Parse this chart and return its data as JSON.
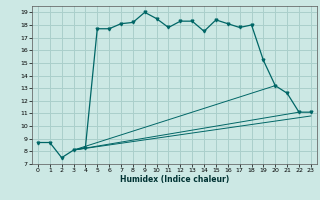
{
  "xlabel": "Humidex (Indice chaleur)",
  "ylabel": "",
  "bg_color": "#cce8e4",
  "grid_color": "#aacfcb",
  "line_color": "#006666",
  "xlim": [
    -0.5,
    23.5
  ],
  "ylim": [
    7,
    19.5
  ],
  "xticks": [
    0,
    1,
    2,
    3,
    4,
    5,
    6,
    7,
    8,
    9,
    10,
    11,
    12,
    13,
    14,
    15,
    16,
    17,
    18,
    19,
    20,
    21,
    22,
    23
  ],
  "yticks": [
    7,
    8,
    9,
    10,
    11,
    12,
    13,
    14,
    15,
    16,
    17,
    18,
    19
  ],
  "main_x": [
    0,
    1,
    2,
    3,
    4,
    5,
    6,
    7,
    8,
    9,
    10,
    11,
    12,
    13,
    14,
    15,
    16,
    17,
    18,
    19,
    20,
    21,
    22,
    23
  ],
  "main_y": [
    8.7,
    8.7,
    7.5,
    8.1,
    8.3,
    17.7,
    17.7,
    18.1,
    18.2,
    19.0,
    18.5,
    17.8,
    18.3,
    18.3,
    17.5,
    18.4,
    18.1,
    17.8,
    18.0,
    15.2,
    13.2,
    12.6,
    11.1,
    11.1
  ],
  "line2_x": [
    3,
    20
  ],
  "line2_y": [
    8.1,
    13.2
  ],
  "line3_x": [
    3,
    22
  ],
  "line3_y": [
    8.1,
    11.1
  ],
  "line4_x": [
    3,
    23
  ],
  "line4_y": [
    8.1,
    10.8
  ]
}
